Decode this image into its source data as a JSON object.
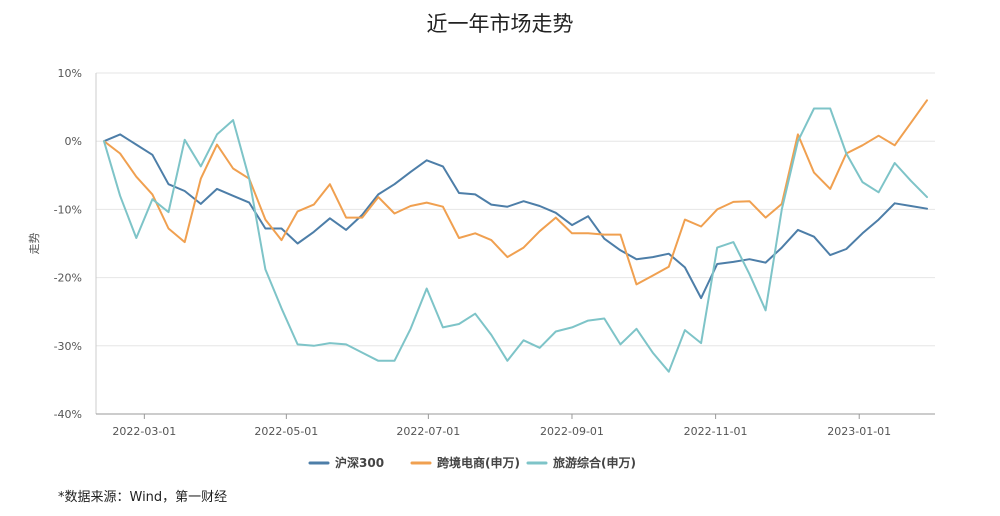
{
  "chart_data": {
    "type": "line",
    "title": "近一年市场走势",
    "ylabel": "走势",
    "xlabel": "",
    "ylim": [
      -40,
      10
    ],
    "yticks": [
      "10%",
      "0%",
      "-10%",
      "-20%",
      "-30%",
      "-40%"
    ],
    "ytick_values": [
      10,
      0,
      -10,
      -20,
      -30,
      -40
    ],
    "x_tick_labels": [
      "2022-03-01",
      "2022-05-01",
      "2022-07-01",
      "2022-09-01",
      "2022-11-01",
      "2023-01-01"
    ],
    "x_tick_index": [
      2.5,
      11.3,
      20.1,
      29.0,
      37.9,
      46.8
    ],
    "grid": true,
    "legend_position": "bottom",
    "series": [
      {
        "name": "沪深300",
        "color": "#4d7ea8",
        "values": [
          0,
          1,
          -0.5,
          -2,
          -6.3,
          -7.3,
          -9.2,
          -7,
          -8,
          -9,
          -12.8,
          -12.8,
          -15,
          -13.3,
          -11.3,
          -13,
          -10.8,
          -7.8,
          -6.3,
          -4.5,
          -2.8,
          -3.7,
          -7.6,
          -7.8,
          -9.3,
          -9.6,
          -8.8,
          -9.5,
          -10.5,
          -12.3,
          -11,
          -14.3,
          -16,
          -17.3,
          -17,
          -16.5,
          -18.5,
          -23,
          -18,
          -17.7,
          -17.3,
          -17.8,
          -15.6,
          -13,
          -14,
          -16.7,
          -15.8,
          -13.5,
          -11.5,
          -9.1,
          -9.5,
          -9.9
        ]
      },
      {
        "name": "跨境电商(申万)",
        "color": "#f0a050",
        "values": [
          0,
          -1.8,
          -5.2,
          -7.8,
          -12.8,
          -14.8,
          -5.5,
          -0.5,
          -4,
          -5.5,
          -11.5,
          -14.5,
          -10.3,
          -9.3,
          -6.3,
          -11.2,
          -11.2,
          -8.2,
          -10.6,
          -9.5,
          -9,
          -9.6,
          -14.2,
          -13.5,
          -14.5,
          -17,
          -15.6,
          -13.2,
          -11.2,
          -13.5,
          -13.5,
          -13.7,
          -13.7,
          -21,
          -19.7,
          -18.4,
          -11.5,
          -12.5,
          -10,
          -8.9,
          -8.8,
          -11.2,
          -9.2,
          1,
          -4.6,
          -7,
          -1.8,
          -0.6,
          0.8,
          -0.6,
          2.7,
          6
        ]
      },
      {
        "name": "旅游综合(申万)",
        "color": "#7ec4c8",
        "values": [
          0,
          -8,
          -14.2,
          -8.5,
          -10.4,
          0.2,
          -3.7,
          1,
          3.1,
          -5.5,
          -18.8,
          -24.5,
          -29.8,
          -30,
          -29.6,
          -29.8,
          -31,
          -32.2,
          -32.2,
          -27.5,
          -21.6,
          -27.3,
          -26.8,
          -25.3,
          -28.4,
          -32.2,
          -29.2,
          -30.3,
          -27.9,
          -27.3,
          -26.3,
          -26,
          -29.8,
          -27.5,
          -31,
          -33.8,
          -27.7,
          -29.6,
          -15.6,
          -14.8,
          -19.5,
          -24.8,
          -10,
          0,
          4.8,
          4.8,
          -1.8,
          -6,
          -7.5,
          -3.2,
          -5.8,
          -8.2
        ]
      }
    ]
  },
  "source_note": "*数据来源：Wind，第一财经"
}
